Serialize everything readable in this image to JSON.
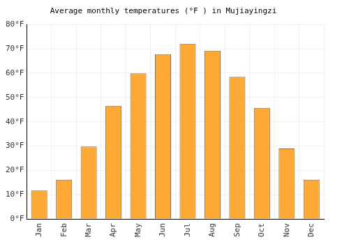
{
  "chart_data": {
    "type": "bar",
    "title": "Average monthly temperatures (°F ) in Mujiayingzi",
    "categories": [
      "Jan",
      "Feb",
      "Mar",
      "Apr",
      "May",
      "Jun",
      "Jul",
      "Aug",
      "Sep",
      "Oct",
      "Nov",
      "Dec"
    ],
    "values": [
      11.7,
      16.2,
      29.8,
      46.6,
      59.9,
      67.8,
      72.1,
      69.2,
      58.5,
      45.7,
      29.0,
      16.2
    ],
    "color": "#fca935",
    "ylim": [
      0,
      80
    ],
    "yticks": [
      {
        "value": 0,
        "label": "0°F"
      },
      {
        "value": 10,
        "label": "10°F"
      },
      {
        "value": 20,
        "label": "20°F"
      },
      {
        "value": 30,
        "label": "30°F"
      },
      {
        "value": 40,
        "label": "40°F"
      },
      {
        "value": 50,
        "label": "50°F"
      },
      {
        "value": 60,
        "label": "60°F"
      },
      {
        "value": 70,
        "label": "70°F"
      },
      {
        "value": 80,
        "label": "80°F"
      }
    ],
    "grid": true
  }
}
